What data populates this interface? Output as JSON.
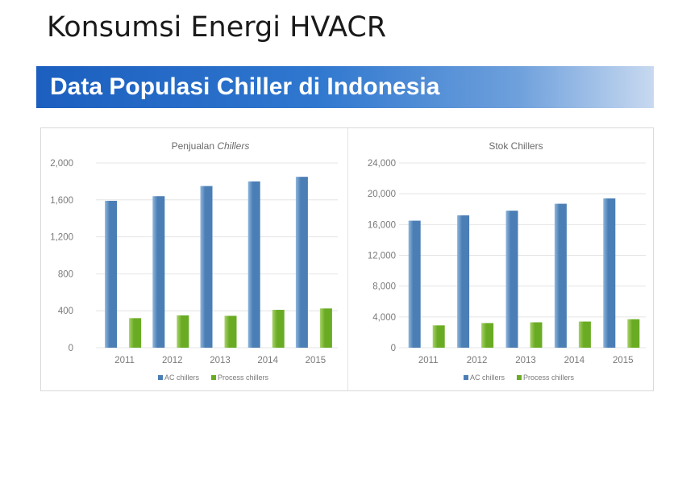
{
  "slide": {
    "title": "Konsumsi Energi HVACR",
    "banner": "Data Populasi Chiller di Indonesia"
  },
  "colors": {
    "ac_bar": "#4a7eb5",
    "process_bar": "#6aab24",
    "grid": "#e4e4e4",
    "axis_text": "#7a7a7a"
  },
  "chart_data": [
    {
      "type": "bar",
      "title_parts": [
        {
          "text": "Penjualan ",
          "italic": false
        },
        {
          "text": "Chillers",
          "italic": true
        }
      ],
      "categories": [
        "2011",
        "2012",
        "2013",
        "2014",
        "2015"
      ],
      "series": [
        {
          "name": "AC chillers",
          "values": [
            1590,
            1640,
            1750,
            1800,
            1850
          ]
        },
        {
          "name": "Process chillers",
          "values": [
            320,
            350,
            345,
            410,
            425
          ]
        }
      ],
      "yticks": [
        "0",
        "400",
        "800",
        "1,200",
        "1,600",
        "2,000"
      ],
      "ylim": [
        0,
        2000
      ],
      "grid": true,
      "legend": "bottom"
    },
    {
      "type": "bar",
      "title_parts": [
        {
          "text": "Stok  Chillers",
          "italic": false
        }
      ],
      "categories": [
        "2011",
        "2012",
        "2013",
        "2014",
        "2015"
      ],
      "series": [
        {
          "name": "AC chillers",
          "values": [
            16500,
            17200,
            17800,
            18700,
            19400
          ]
        },
        {
          "name": "Process chillers",
          "values": [
            2900,
            3200,
            3300,
            3400,
            3700
          ]
        }
      ],
      "yticks": [
        "0",
        "4,000",
        "8,000",
        "12,000",
        "16,000",
        "20,000",
        "24,000"
      ],
      "ylim": [
        0,
        24000
      ],
      "grid": true,
      "legend": "bottom"
    }
  ]
}
